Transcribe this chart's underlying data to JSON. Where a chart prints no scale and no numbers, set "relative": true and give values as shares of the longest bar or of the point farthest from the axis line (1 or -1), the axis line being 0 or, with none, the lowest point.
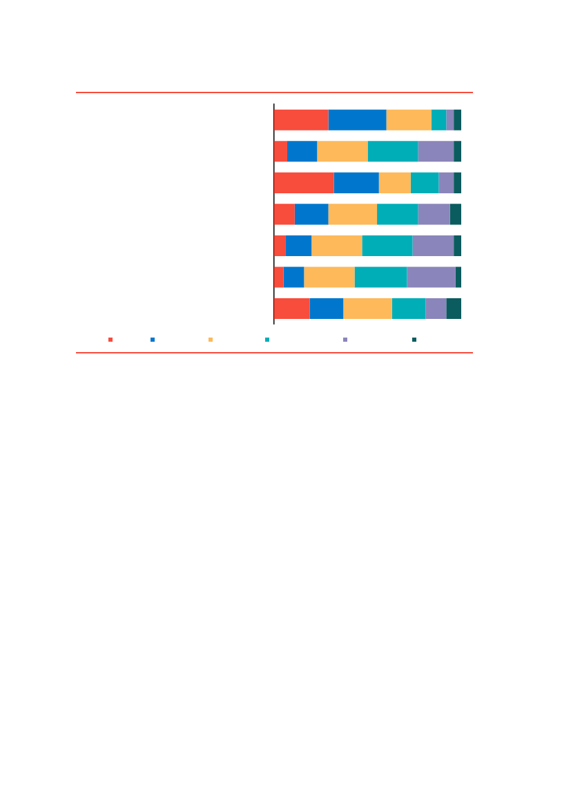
{
  "chart_data": {
    "type": "bar",
    "orientation": "horizontal",
    "stacked": true,
    "relative": true,
    "categories": [
      null,
      null,
      null,
      null,
      null,
      null,
      null
    ],
    "series": [
      {
        "color": "#f84c3c",
        "values": [
          0.29,
          0.07,
          0.32,
          0.11,
          0.06,
          0.05,
          0.19
        ]
      },
      {
        "color": "#0077cc",
        "values": [
          0.31,
          0.16,
          0.24,
          0.18,
          0.14,
          0.11,
          0.18
        ]
      },
      {
        "color": "#fdb95a",
        "values": [
          0.24,
          0.27,
          0.17,
          0.26,
          0.27,
          0.27,
          0.26
        ]
      },
      {
        "color": "#00aeb8",
        "values": [
          0.08,
          0.27,
          0.15,
          0.22,
          0.27,
          0.28,
          0.18
        ]
      },
      {
        "color": "#8a85ba",
        "values": [
          0.04,
          0.19,
          0.08,
          0.17,
          0.22,
          0.26,
          0.11
        ]
      },
      {
        "color": "#0b5c5f",
        "values": [
          0.04,
          0.04,
          0.04,
          0.06,
          0.04,
          0.03,
          0.08
        ]
      }
    ]
  }
}
